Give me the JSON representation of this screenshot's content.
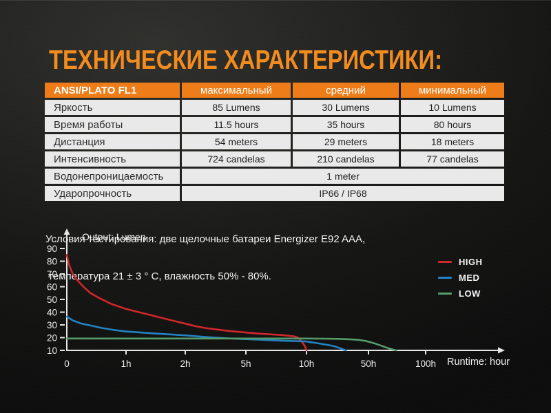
{
  "title": "ТЕХНИЧЕСКИЕ ХАРАКТЕРИСТИКИ:",
  "table": {
    "header": [
      "ANSI/PLATO FL1",
      "максимальный",
      "средний",
      "минимальный"
    ],
    "rows": [
      {
        "label": "Яркость",
        "values": [
          "85 Lumens",
          "30 Lumens",
          "10 Lumens"
        ]
      },
      {
        "label": "Время работы",
        "values": [
          "11.5 hours",
          "35 hours",
          "80 hours"
        ]
      },
      {
        "label": "Дистанция",
        "values": [
          "54 meters",
          "29 meters",
          "18 meters"
        ]
      },
      {
        "label": "Интенсивность",
        "values": [
          "724 candelas",
          "210 candelas",
          "77 candelas"
        ]
      }
    ],
    "merged_rows": [
      {
        "label": "Водонепроницаемость",
        "value": "1 meter"
      },
      {
        "label": "Ударопрочность",
        "value": "IP66 / IP68"
      }
    ]
  },
  "test_conditions": {
    "line1": "Условия тестирования: две щелочные батареи Energizer E92 AAA,",
    "line2": " температура 21 ± 3 ° C, влажность 50% - 80%."
  },
  "colors": {
    "accent_orange_title": "#F28C1E",
    "accent_orange_header": "#EE7D19",
    "cell_gray": "#E9E9E9",
    "axis": "#E6E6E6"
  },
  "chart_data": {
    "type": "line",
    "title": "Output: Lumen",
    "xlabel": "Runtime: hour",
    "ylim": [
      10,
      90
    ],
    "grid": false,
    "legend_position": "right",
    "y_ticks": [
      90,
      80,
      70,
      60,
      50,
      40,
      30,
      20,
      10
    ],
    "x_ticks": [
      {
        "label": "0",
        "hours": 0
      },
      {
        "label": "1h",
        "hours": 1
      },
      {
        "label": "2h",
        "hours": 2
      },
      {
        "label": "5h",
        "hours": 5
      },
      {
        "label": "10h",
        "hours": 10
      },
      {
        "label": "50h",
        "hours": 50
      },
      {
        "label": "100h",
        "hours": 100
      }
    ],
    "series": [
      {
        "name": "HIGH",
        "color": "#D1262B",
        "points": [
          [
            0,
            85
          ],
          [
            0.04,
            77
          ],
          [
            0.1,
            70
          ],
          [
            0.18,
            65
          ],
          [
            0.28,
            60
          ],
          [
            0.4,
            55
          ],
          [
            0.55,
            51
          ],
          [
            0.75,
            46.5
          ],
          [
            1,
            42.5
          ],
          [
            1.3,
            39
          ],
          [
            1.6,
            35.5
          ],
          [
            2,
            31
          ],
          [
            2.5,
            29
          ],
          [
            3,
            27.5
          ],
          [
            4,
            25.5
          ],
          [
            5,
            24
          ],
          [
            6,
            23.2
          ],
          [
            7,
            22.6
          ],
          [
            8,
            22
          ],
          [
            9,
            21
          ],
          [
            9.3,
            20
          ],
          [
            9.6,
            17
          ],
          [
            9.85,
            13.5
          ],
          [
            10.05,
            10
          ]
        ]
      },
      {
        "name": "MED",
        "color": "#2383C4",
        "points": [
          [
            0,
            36.5
          ],
          [
            0.1,
            33.5
          ],
          [
            0.25,
            31
          ],
          [
            0.4,
            29.5
          ],
          [
            0.6,
            27.5
          ],
          [
            0.8,
            26
          ],
          [
            1,
            24.8
          ],
          [
            1.5,
            23.2
          ],
          [
            2,
            21.8
          ],
          [
            3,
            20.5
          ],
          [
            4,
            19.5
          ],
          [
            5,
            18.8
          ],
          [
            6.5,
            18.2
          ],
          [
            8,
            17.6
          ],
          [
            10,
            17
          ],
          [
            13,
            16.4
          ],
          [
            17,
            15.6
          ],
          [
            21,
            14.8
          ],
          [
            25,
            14
          ],
          [
            28,
            13.2
          ],
          [
            31,
            12
          ],
          [
            33.5,
            10.8
          ],
          [
            35.5,
            10
          ]
        ]
      },
      {
        "name": "LOW",
        "color": "#549D69",
        "points": [
          [
            0,
            19.3
          ],
          [
            5,
            19.3
          ],
          [
            10,
            19.3
          ],
          [
            20,
            19.2
          ],
          [
            30,
            19
          ],
          [
            38,
            18.7
          ],
          [
            44,
            18.2
          ],
          [
            48,
            17.4
          ],
          [
            52,
            16.4
          ],
          [
            57,
            15
          ],
          [
            62,
            13.4
          ],
          [
            67,
            11.8
          ],
          [
            72,
            10.5
          ],
          [
            74.5,
            10
          ]
        ]
      }
    ]
  }
}
